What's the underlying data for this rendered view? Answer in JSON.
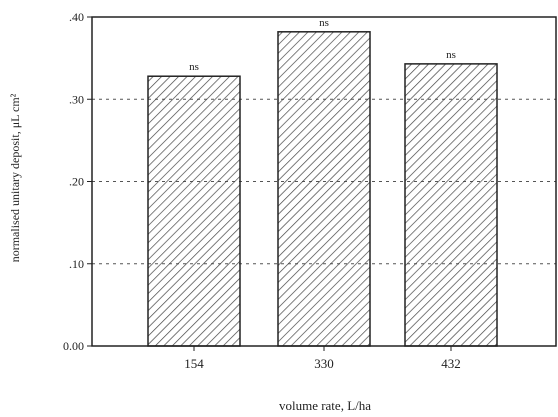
{
  "chart_data": {
    "type": "bar",
    "categories": [
      "154",
      "330",
      "432"
    ],
    "values": [
      0.328,
      0.382,
      0.343
    ],
    "bar_labels": [
      "ns",
      "ns",
      "ns"
    ],
    "xlabel": "volume rate, L/ha",
    "ylabel": "normalised unitary deposit, μL cm²",
    "ylim": [
      0,
      0.4
    ],
    "yticks": [
      0,
      0.1,
      0.2,
      0.3,
      0.4
    ],
    "ytick_labels": [
      "0.00",
      ".10",
      ".20",
      ".30",
      ".40"
    ],
    "grid": "horizontal dashed",
    "legend": "none",
    "bar_fill": "diagonal hatch",
    "colors": {
      "bar_stroke": "#222222",
      "hatch": "#444444",
      "grid": "#555555",
      "axis": "#222222"
    }
  }
}
